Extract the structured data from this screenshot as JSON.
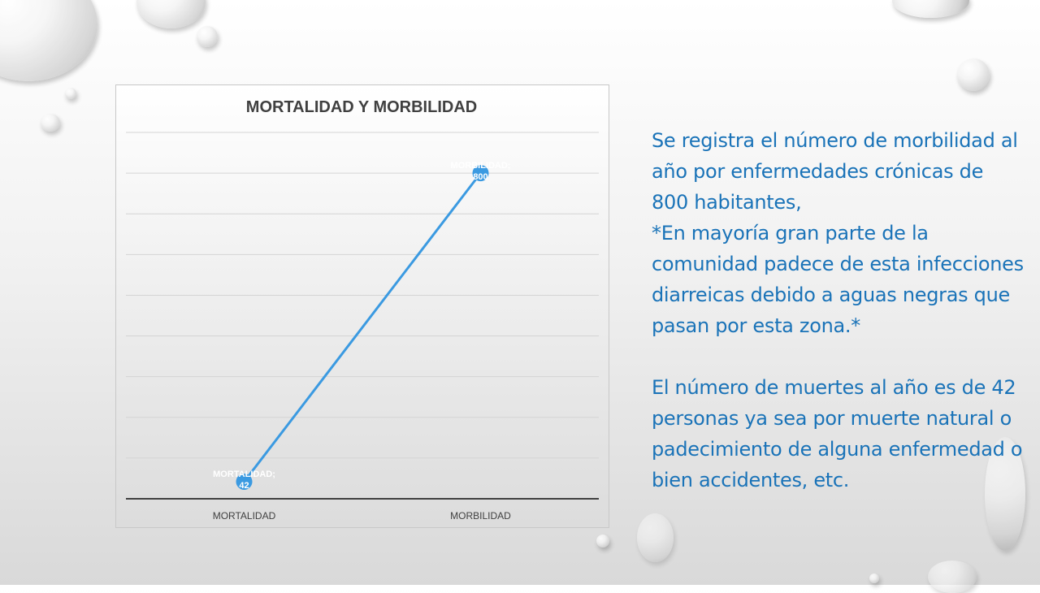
{
  "chart_data": {
    "type": "line",
    "title": "MORTALIDAD Y MORBILIDAD",
    "categories": [
      "MORTALIDAD",
      "MORBILIDAD"
    ],
    "series": [
      {
        "values": [
          42,
          800
        ]
      }
    ],
    "data_labels": [
      "MORTALIDAD; 42",
      "MORBILIDAD; 800"
    ],
    "ylim": [
      0,
      900
    ],
    "grid": true,
    "line_color": "#3b9ae1"
  },
  "text": {
    "paragraph1": "Se registra el número de morbilidad al año por enfermedades crónicas de 800 habitantes,",
    "paragraph2": "*En mayoría gran parte de la comunidad padece de esta infecciones diarreicas debido a aguas negras que pasan por esta zona.*",
    "paragraph3": "El número de muertes al año es de 42 personas ya sea por muerte natural o padecimiento de alguna enfermedad o bien accidentes, etc."
  }
}
